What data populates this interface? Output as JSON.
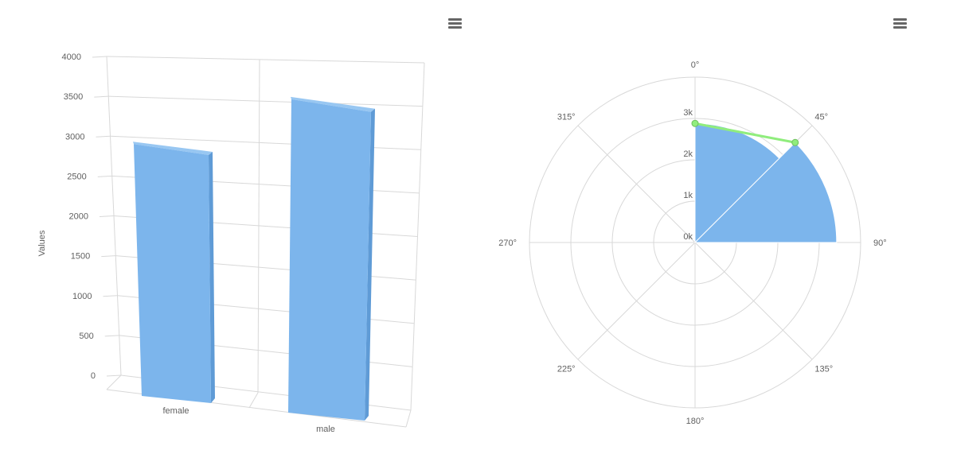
{
  "charts": {
    "bar3d": {
      "chart_data": {
        "type": "bar",
        "title": "",
        "xlabel": "",
        "ylabel": "Values",
        "categories": [
          "female",
          "male"
        ],
        "values": [
          2880,
          3420
        ],
        "ylim": [
          0,
          4000
        ],
        "yticks": [
          0,
          500,
          1000,
          1500,
          2000,
          2500,
          3000,
          3500,
          4000
        ],
        "grid": true,
        "bar_color": "#7cb5ec",
        "bar_side_color": "#5f9bd6",
        "bar_top_color": "#98c7f2"
      }
    },
    "polar": {
      "chart_data": {
        "type": "polar",
        "title": "",
        "angle_labels": [
          "0°",
          "45°",
          "90°",
          "135°",
          "180°",
          "225°",
          "270°",
          "315°"
        ],
        "angle_values": [
          0,
          45,
          90,
          135,
          180,
          225,
          270,
          315
        ],
        "radial_labels": [
          "0k",
          "1k",
          "2k",
          "3k"
        ],
        "radial_values": [
          0,
          1000,
          2000,
          3000
        ],
        "rmax": 4000,
        "grid": true,
        "series": [
          {
            "type": "column",
            "x": [
              0,
              45
            ],
            "values": [
              2880,
              3420
            ],
            "color": "#7cb5ec"
          },
          {
            "type": "line",
            "x": [
              0,
              45
            ],
            "values": [
              2880,
              3420
            ],
            "color": "#90ed7d",
            "stroke_color": "#6dbf5c"
          }
        ]
      }
    }
  },
  "menu": {
    "icon": "hamburger-menu-icon"
  }
}
